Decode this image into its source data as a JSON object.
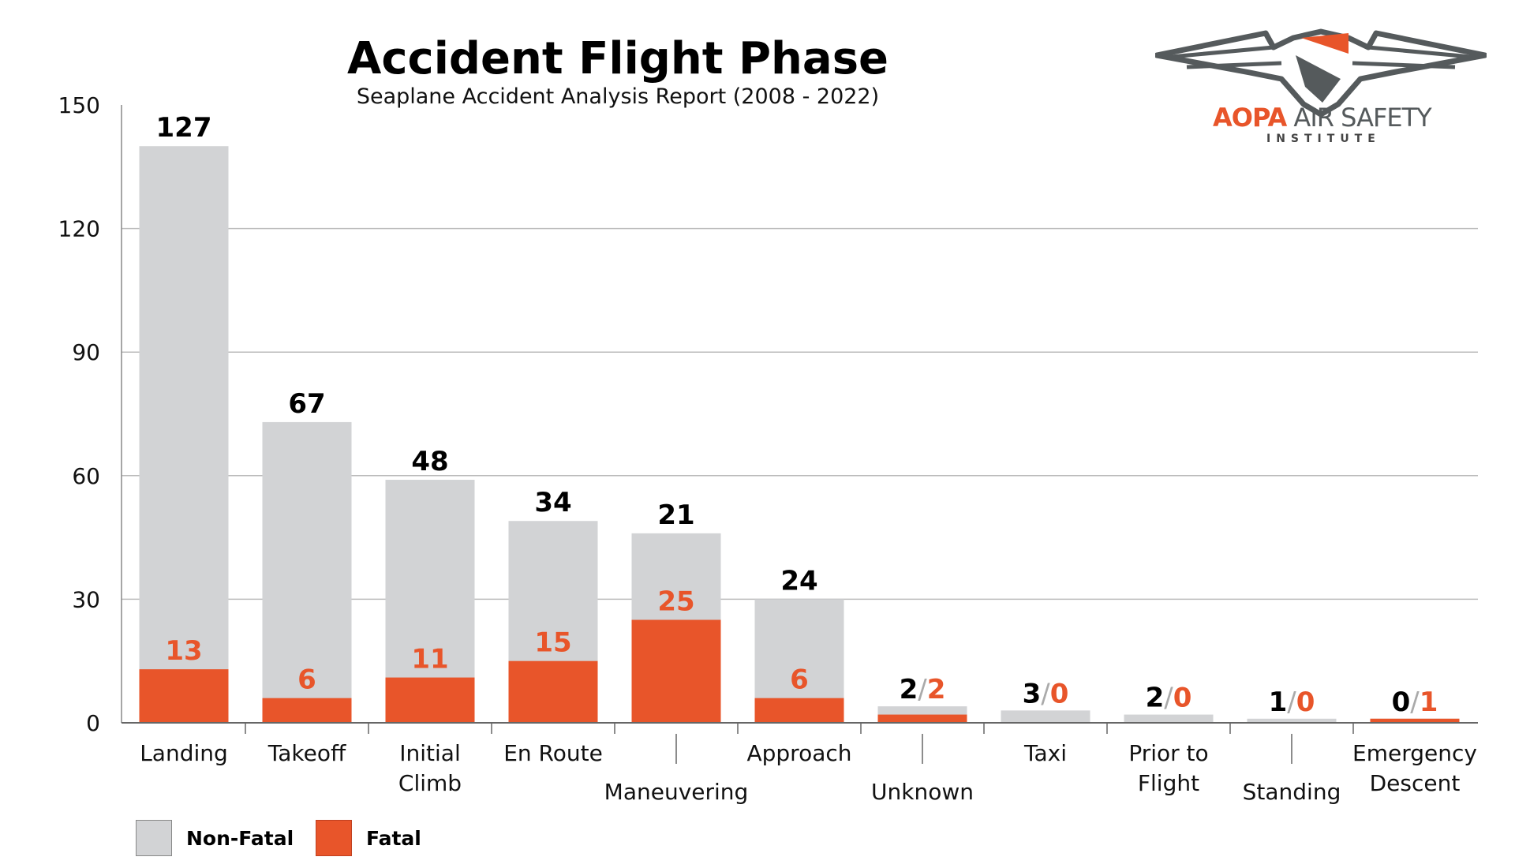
{
  "colors": {
    "nonfatal": "#d2d3d5",
    "fatal": "#e8552a",
    "grid": "#bbbbbb"
  },
  "logo": {
    "brand": "AOPA",
    "name": "AIR SAFETY",
    "sub": "INSTITUTE"
  },
  "chart_data": {
    "type": "bar",
    "stacked": true,
    "title": "Accident Flight Phase",
    "subtitle": "Seaplane Accident Analysis Report (2008 - 2022)",
    "xlabel": "",
    "ylabel": "",
    "ylim": [
      0,
      150
    ],
    "yticks": [
      0,
      30,
      60,
      90,
      120,
      150
    ],
    "grid": true,
    "legend_position": "bottom-left",
    "categories": [
      "Landing",
      "Takeoff",
      "Initial Climb",
      "En Route",
      "Maneuvering",
      "Approach",
      "Unknown",
      "Taxi",
      "Prior to Flight",
      "Standing",
      "Emergency Descent"
    ],
    "category_lines": [
      [
        "Landing"
      ],
      [
        "Takeoff"
      ],
      [
        "Initial",
        "Climb"
      ],
      [
        "En Route"
      ],
      [
        "Maneuvering"
      ],
      [
        "Approach"
      ],
      [
        "Unknown"
      ],
      [
        "Taxi"
      ],
      [
        "Prior to",
        "Flight"
      ],
      [
        "Standing"
      ],
      [
        "Emergency",
        "Descent"
      ]
    ],
    "staggered": [
      false,
      false,
      false,
      false,
      true,
      false,
      true,
      false,
      false,
      true,
      false
    ],
    "series": [
      {
        "name": "Fatal",
        "values": [
          13,
          6,
          11,
          15,
          25,
          6,
          2,
          0,
          0,
          0,
          1
        ]
      },
      {
        "name": "Non-Fatal",
        "values": [
          127,
          67,
          48,
          34,
          21,
          24,
          2,
          3,
          2,
          1,
          0
        ]
      }
    ]
  }
}
